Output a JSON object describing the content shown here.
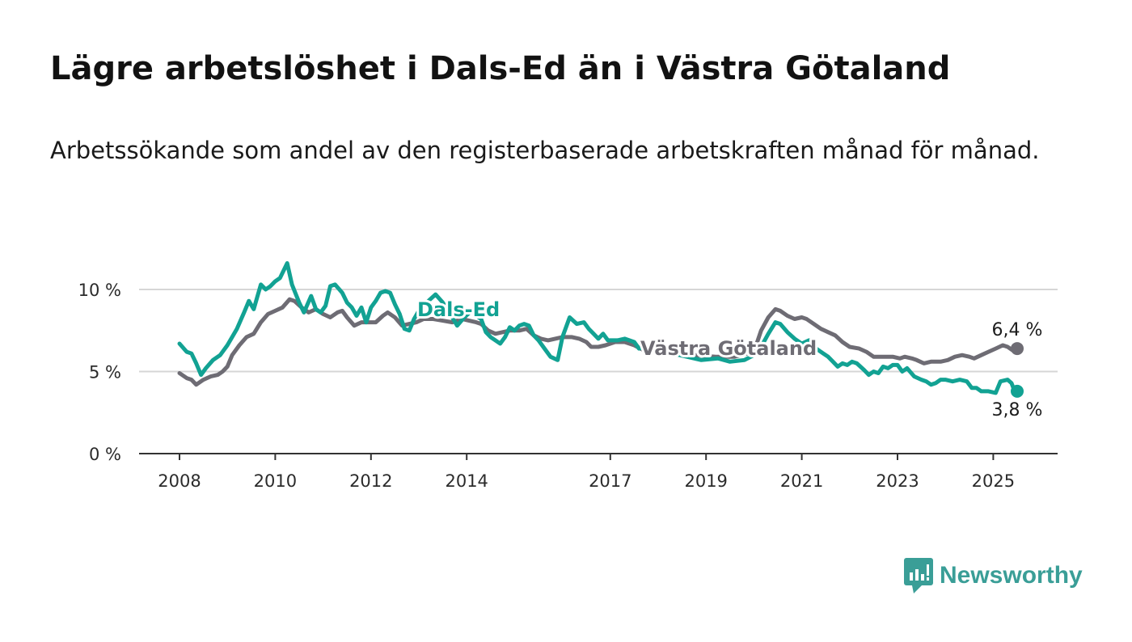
{
  "header": {
    "title": "Lägre arbetslöshet i Dals-Ed än i Västra Götaland",
    "subtitle": "Arbetssökande som andel av den registerbaserade arbetskraften månad för månad."
  },
  "brand": {
    "name": "Newsworthy",
    "icon": "newsworthy-logo-icon",
    "color": "#3a9e97"
  },
  "chart_data": {
    "type": "line",
    "title": "Lägre arbetslöshet i Dals-Ed än i Västra Götaland",
    "subtitle": "Arbetssökande som andel av den registerbaserade arbetskraften månad för månad.",
    "xlabel": "",
    "ylabel": "",
    "x_range": [
      2008.0,
      2025.5
    ],
    "ylim": [
      0,
      12
    ],
    "y_ticks": [
      0,
      5,
      10
    ],
    "y_tick_labels": [
      "0 %",
      "5 %",
      "10 %"
    ],
    "x_ticks": [
      2008,
      2010,
      2012,
      2014,
      2017,
      2019,
      2021,
      2023,
      2025
    ],
    "x_tick_labels": [
      "2008",
      "2010",
      "2012",
      "2014",
      "2017",
      "2019",
      "2021",
      "2023",
      "2025"
    ],
    "grid": "horizontal",
    "legend": "direct labels",
    "series": [
      {
        "name": "Dals-Ed",
        "color": "#12a293",
        "end_label": "3,8 %",
        "points": [
          [
            2008.0,
            6.7
          ],
          [
            2008.15,
            6.2
          ],
          [
            2008.25,
            6.1
          ],
          [
            2008.35,
            5.5
          ],
          [
            2008.45,
            4.8
          ],
          [
            2008.55,
            5.2
          ],
          [
            2008.7,
            5.7
          ],
          [
            2008.85,
            6.0
          ],
          [
            2009.0,
            6.6
          ],
          [
            2009.1,
            7.1
          ],
          [
            2009.2,
            7.6
          ],
          [
            2009.35,
            8.6
          ],
          [
            2009.45,
            9.3
          ],
          [
            2009.55,
            8.8
          ],
          [
            2009.7,
            10.3
          ],
          [
            2009.8,
            10.0
          ],
          [
            2009.9,
            10.2
          ],
          [
            2010.0,
            10.5
          ],
          [
            2010.1,
            10.7
          ],
          [
            2010.25,
            11.6
          ],
          [
            2010.35,
            10.3
          ],
          [
            2010.5,
            9.2
          ],
          [
            2010.6,
            8.6
          ],
          [
            2010.75,
            9.6
          ],
          [
            2010.85,
            8.8
          ],
          [
            2010.95,
            8.6
          ],
          [
            2011.05,
            9.0
          ],
          [
            2011.15,
            10.2
          ],
          [
            2011.25,
            10.3
          ],
          [
            2011.4,
            9.8
          ],
          [
            2011.5,
            9.2
          ],
          [
            2011.6,
            8.9
          ],
          [
            2011.7,
            8.4
          ],
          [
            2011.8,
            8.9
          ],
          [
            2011.9,
            8.0
          ],
          [
            2012.0,
            8.9
          ],
          [
            2012.1,
            9.3
          ],
          [
            2012.2,
            9.8
          ],
          [
            2012.3,
            9.9
          ],
          [
            2012.4,
            9.8
          ],
          [
            2012.5,
            9.1
          ],
          [
            2012.6,
            8.5
          ],
          [
            2012.7,
            7.6
          ],
          [
            2012.8,
            7.5
          ],
          [
            2012.9,
            8.2
          ],
          [
            2013.0,
            8.7
          ],
          [
            2013.2,
            9.3
          ],
          [
            2013.35,
            9.7
          ],
          [
            2013.5,
            9.2
          ],
          [
            2013.7,
            8.3
          ],
          [
            2013.8,
            7.8
          ],
          [
            2013.95,
            8.3
          ],
          [
            2014.1,
            8.7
          ],
          [
            2014.2,
            8.4
          ],
          [
            2014.3,
            8.2
          ],
          [
            2014.4,
            7.4
          ],
          [
            2014.5,
            7.1
          ],
          [
            2014.6,
            6.9
          ],
          [
            2014.7,
            6.7
          ],
          [
            2014.8,
            7.1
          ],
          [
            2014.9,
            7.7
          ],
          [
            2015.0,
            7.5
          ],
          [
            2015.1,
            7.8
          ],
          [
            2015.2,
            7.9
          ],
          [
            2015.3,
            7.8
          ],
          [
            2015.4,
            7.2
          ],
          [
            2015.5,
            6.9
          ],
          [
            2015.65,
            6.3
          ],
          [
            2015.75,
            5.9
          ],
          [
            2015.9,
            5.7
          ],
          [
            2016.0,
            7.1
          ],
          [
            2016.15,
            8.3
          ],
          [
            2016.3,
            7.9
          ],
          [
            2016.45,
            8.0
          ],
          [
            2016.55,
            7.6
          ],
          [
            2016.65,
            7.3
          ],
          [
            2016.75,
            7.0
          ],
          [
            2016.85,
            7.3
          ],
          [
            2016.95,
            6.9
          ],
          [
            2017.15,
            6.9
          ],
          [
            2017.3,
            7.0
          ],
          [
            2017.5,
            6.8
          ],
          [
            2017.6,
            6.4
          ],
          [
            2017.75,
            6.5
          ],
          [
            2018.0,
            6.3
          ],
          [
            2018.3,
            6.1
          ],
          [
            2018.6,
            5.9
          ],
          [
            2018.9,
            5.7
          ],
          [
            2019.25,
            5.8
          ],
          [
            2019.5,
            5.6
          ],
          [
            2019.8,
            5.7
          ],
          [
            2020.0,
            6.0
          ],
          [
            2020.15,
            6.5
          ],
          [
            2020.3,
            7.3
          ],
          [
            2020.45,
            8.0
          ],
          [
            2020.55,
            7.9
          ],
          [
            2020.7,
            7.4
          ],
          [
            2020.85,
            7.0
          ],
          [
            2021.0,
            6.7
          ],
          [
            2021.15,
            6.9
          ],
          [
            2021.3,
            6.4
          ],
          [
            2021.45,
            6.1
          ],
          [
            2021.55,
            5.9
          ],
          [
            2021.65,
            5.6
          ],
          [
            2021.75,
            5.3
          ],
          [
            2021.85,
            5.5
          ],
          [
            2021.95,
            5.4
          ],
          [
            2022.05,
            5.6
          ],
          [
            2022.15,
            5.5
          ],
          [
            2022.3,
            5.1
          ],
          [
            2022.4,
            4.8
          ],
          [
            2022.5,
            5.0
          ],
          [
            2022.6,
            4.9
          ],
          [
            2022.7,
            5.3
          ],
          [
            2022.8,
            5.2
          ],
          [
            2022.9,
            5.4
          ],
          [
            2023.0,
            5.4
          ],
          [
            2023.1,
            5.0
          ],
          [
            2023.2,
            5.2
          ],
          [
            2023.35,
            4.7
          ],
          [
            2023.5,
            4.5
          ],
          [
            2023.6,
            4.4
          ],
          [
            2023.7,
            4.2
          ],
          [
            2023.8,
            4.3
          ],
          [
            2023.9,
            4.5
          ],
          [
            2024.0,
            4.5
          ],
          [
            2024.15,
            4.4
          ],
          [
            2024.3,
            4.5
          ],
          [
            2024.45,
            4.4
          ],
          [
            2024.55,
            4.0
          ],
          [
            2024.65,
            4.0
          ],
          [
            2024.75,
            3.8
          ],
          [
            2024.9,
            3.8
          ],
          [
            2025.05,
            3.7
          ],
          [
            2025.15,
            4.4
          ],
          [
            2025.3,
            4.5
          ],
          [
            2025.38,
            4.3
          ],
          [
            2025.45,
            3.8
          ],
          [
            2025.5,
            3.8
          ]
        ]
      },
      {
        "name": "Västra Götaland",
        "color": "#6e6c74",
        "end_label": "6,4 %",
        "points": [
          [
            2008.0,
            4.9
          ],
          [
            2008.15,
            4.6
          ],
          [
            2008.25,
            4.5
          ],
          [
            2008.35,
            4.2
          ],
          [
            2008.5,
            4.5
          ],
          [
            2008.65,
            4.7
          ],
          [
            2008.8,
            4.8
          ],
          [
            2008.9,
            5.0
          ],
          [
            2009.0,
            5.3
          ],
          [
            2009.1,
            6.0
          ],
          [
            2009.25,
            6.6
          ],
          [
            2009.4,
            7.1
          ],
          [
            2009.55,
            7.3
          ],
          [
            2009.7,
            8.0
          ],
          [
            2009.85,
            8.5
          ],
          [
            2010.0,
            8.7
          ],
          [
            2010.15,
            8.9
          ],
          [
            2010.3,
            9.4
          ],
          [
            2010.4,
            9.3
          ],
          [
            2010.55,
            8.9
          ],
          [
            2010.7,
            8.6
          ],
          [
            2010.85,
            8.8
          ],
          [
            2011.0,
            8.5
          ],
          [
            2011.15,
            8.3
          ],
          [
            2011.3,
            8.6
          ],
          [
            2011.4,
            8.7
          ],
          [
            2011.5,
            8.3
          ],
          [
            2011.65,
            7.8
          ],
          [
            2011.8,
            8.0
          ],
          [
            2011.95,
            8.0
          ],
          [
            2012.1,
            8.0
          ],
          [
            2012.25,
            8.4
          ],
          [
            2012.35,
            8.6
          ],
          [
            2012.5,
            8.3
          ],
          [
            2012.65,
            7.8
          ],
          [
            2012.8,
            7.9
          ],
          [
            2012.95,
            8.0
          ],
          [
            2013.1,
            8.2
          ],
          [
            2013.3,
            8.2
          ],
          [
            2013.5,
            8.1
          ],
          [
            2013.7,
            8.0
          ],
          [
            2013.9,
            8.2
          ],
          [
            2014.05,
            8.1
          ],
          [
            2014.2,
            8.0
          ],
          [
            2014.3,
            7.9
          ],
          [
            2014.45,
            7.5
          ],
          [
            2014.6,
            7.3
          ],
          [
            2014.75,
            7.4
          ],
          [
            2014.9,
            7.5
          ],
          [
            2015.1,
            7.5
          ],
          [
            2015.25,
            7.6
          ],
          [
            2015.4,
            7.2
          ],
          [
            2015.55,
            7.0
          ],
          [
            2015.7,
            6.9
          ],
          [
            2015.85,
            7.0
          ],
          [
            2016.0,
            7.1
          ],
          [
            2016.2,
            7.1
          ],
          [
            2016.35,
            7.0
          ],
          [
            2016.5,
            6.8
          ],
          [
            2016.6,
            6.5
          ],
          [
            2016.75,
            6.5
          ],
          [
            2016.9,
            6.6
          ],
          [
            2017.1,
            6.8
          ],
          [
            2017.3,
            6.8
          ],
          [
            2017.5,
            6.6
          ],
          [
            2017.7,
            6.3
          ],
          [
            2018.0,
            6.2
          ],
          [
            2018.4,
            6.1
          ],
          [
            2018.8,
            6.0
          ],
          [
            2019.2,
            5.9
          ],
          [
            2019.6,
            5.9
          ],
          [
            2020.0,
            6.2
          ],
          [
            2020.15,
            7.5
          ],
          [
            2020.3,
            8.3
          ],
          [
            2020.45,
            8.8
          ],
          [
            2020.55,
            8.7
          ],
          [
            2020.7,
            8.4
          ],
          [
            2020.85,
            8.2
          ],
          [
            2021.0,
            8.3
          ],
          [
            2021.1,
            8.2
          ],
          [
            2021.25,
            7.9
          ],
          [
            2021.4,
            7.6
          ],
          [
            2021.55,
            7.4
          ],
          [
            2021.7,
            7.2
          ],
          [
            2021.85,
            6.8
          ],
          [
            2022.0,
            6.5
          ],
          [
            2022.2,
            6.4
          ],
          [
            2022.35,
            6.2
          ],
          [
            2022.5,
            5.9
          ],
          [
            2022.7,
            5.9
          ],
          [
            2022.9,
            5.9
          ],
          [
            2023.05,
            5.8
          ],
          [
            2023.15,
            5.9
          ],
          [
            2023.3,
            5.8
          ],
          [
            2023.4,
            5.7
          ],
          [
            2023.55,
            5.5
          ],
          [
            2023.7,
            5.6
          ],
          [
            2023.9,
            5.6
          ],
          [
            2024.05,
            5.7
          ],
          [
            2024.2,
            5.9
          ],
          [
            2024.35,
            6.0
          ],
          [
            2024.5,
            5.9
          ],
          [
            2024.6,
            5.8
          ],
          [
            2024.75,
            6.0
          ],
          [
            2024.9,
            6.2
          ],
          [
            2025.05,
            6.4
          ],
          [
            2025.2,
            6.6
          ],
          [
            2025.3,
            6.5
          ],
          [
            2025.4,
            6.3
          ],
          [
            2025.5,
            6.4
          ]
        ]
      }
    ]
  }
}
